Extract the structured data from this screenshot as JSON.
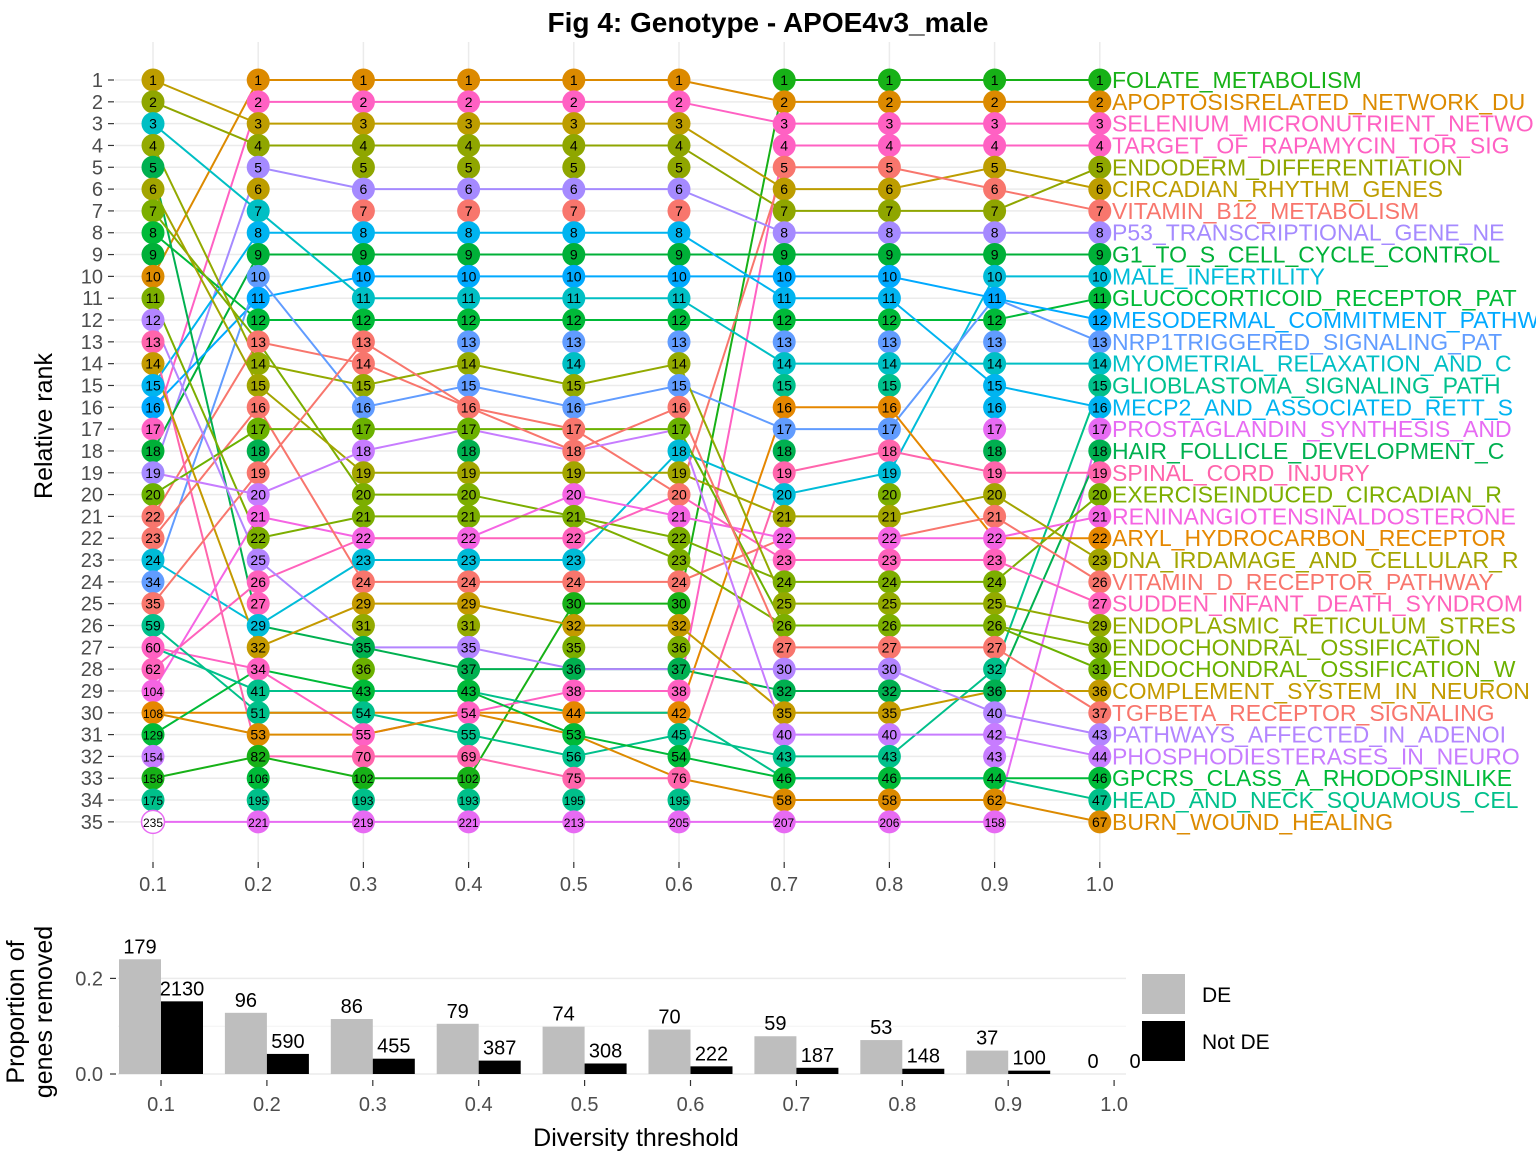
{
  "chart_data": [
    {
      "type": "line",
      "title": "Fig 4: Genotype - APOE4v3_male",
      "ylabel": "Relative rank",
      "ylim": [
        1,
        35
      ],
      "grid": true,
      "x": [
        "0.1",
        "0.2",
        "0.3",
        "0.4",
        "0.5",
        "0.6",
        "0.7",
        "0.8",
        "0.9",
        "1.0"
      ],
      "y_ticks": [
        "1",
        "2",
        "3",
        "4",
        "5",
        "6",
        "7",
        "8",
        "9",
        "10",
        "11",
        "12",
        "13",
        "14",
        "15",
        "16",
        "17",
        "18",
        "19",
        "20",
        "21",
        "22",
        "23",
        "24",
        "25",
        "26",
        "27",
        "28",
        "29",
        "30",
        "31",
        "32",
        "33",
        "34",
        "35"
      ],
      "point_labels": [
        [
          "1",
          "2",
          "3",
          "4",
          "5",
          "6",
          "7",
          "8",
          "9",
          "10",
          "11",
          "12",
          "13",
          "14",
          "15",
          "16",
          "17",
          "18",
          "19",
          "20",
          "22",
          "23",
          "24",
          "34",
          "35",
          "59",
          "60",
          "62",
          "104",
          "108",
          "129",
          "154",
          "158",
          "175",
          "235"
        ],
        [
          "1",
          "2",
          "3",
          "4",
          "5",
          "6",
          "7",
          "8",
          "9",
          "10",
          "11",
          "12",
          "13",
          "14",
          "15",
          "16",
          "17",
          "18",
          "19",
          "20",
          "21",
          "22",
          "25",
          "26",
          "27",
          "29",
          "32",
          "34",
          "41",
          "51",
          "53",
          "82",
          "106",
          "195",
          "221"
        ],
        [
          "1",
          "2",
          "3",
          "4",
          "5",
          "6",
          "7",
          "8",
          "9",
          "10",
          "11",
          "12",
          "13",
          "14",
          "15",
          "16",
          "17",
          "18",
          "19",
          "20",
          "21",
          "22",
          "23",
          "24",
          "29",
          "31",
          "35",
          "36",
          "43",
          "54",
          "55",
          "70",
          "102",
          "193",
          "219"
        ],
        [
          "1",
          "2",
          "3",
          "4",
          "5",
          "6",
          "7",
          "8",
          "9",
          "10",
          "11",
          "12",
          "13",
          "14",
          "15",
          "16",
          "17",
          "18",
          "19",
          "20",
          "21",
          "22",
          "23",
          "24",
          "29",
          "31",
          "35",
          "37",
          "43",
          "54",
          "55",
          "69",
          "102",
          "193",
          "221"
        ],
        [
          "1",
          "2",
          "3",
          "4",
          "5",
          "6",
          "7",
          "8",
          "9",
          "10",
          "11",
          "12",
          "13",
          "14",
          "15",
          "16",
          "17",
          "18",
          "19",
          "20",
          "21",
          "22",
          "23",
          "24",
          "30",
          "32",
          "35",
          "36",
          "38",
          "44",
          "53",
          "56",
          "75",
          "195",
          "213"
        ],
        [
          "1",
          "2",
          "3",
          "4",
          "5",
          "6",
          "7",
          "8",
          "9",
          "10",
          "11",
          "12",
          "13",
          "14",
          "15",
          "16",
          "17",
          "18",
          "19",
          "20",
          "21",
          "22",
          "23",
          "24",
          "30",
          "32",
          "36",
          "37",
          "38",
          "42",
          "45",
          "54",
          "76",
          "195",
          "205"
        ],
        [
          "1",
          "2",
          "3",
          "4",
          "5",
          "6",
          "7",
          "8",
          "9",
          "10",
          "11",
          "12",
          "13",
          "14",
          "15",
          "16",
          "17",
          "18",
          "19",
          "20",
          "21",
          "22",
          "23",
          "24",
          "25",
          "26",
          "27",
          "30",
          "32",
          "35",
          "40",
          "43",
          "46",
          "58",
          "207"
        ],
        [
          "1",
          "2",
          "3",
          "4",
          "5",
          "6",
          "7",
          "8",
          "9",
          "10",
          "11",
          "12",
          "13",
          "14",
          "15",
          "16",
          "17",
          "18",
          "19",
          "20",
          "21",
          "22",
          "23",
          "24",
          "25",
          "26",
          "27",
          "30",
          "32",
          "35",
          "40",
          "43",
          "46",
          "58",
          "206"
        ],
        [
          "1",
          "2",
          "3",
          "4",
          "5",
          "6",
          "7",
          "8",
          "9",
          "10",
          "11",
          "12",
          "13",
          "14",
          "15",
          "16",
          "17",
          "18",
          "19",
          "20",
          "21",
          "22",
          "23",
          "24",
          "25",
          "26",
          "27",
          "32",
          "36",
          "40",
          "42",
          "43",
          "44",
          "62",
          "158"
        ],
        [
          "1",
          "2",
          "3",
          "4",
          "5",
          "6",
          "7",
          "8",
          "9",
          "10",
          "11",
          "12",
          "13",
          "14",
          "15",
          "16",
          "17",
          "18",
          "19",
          "20",
          "21",
          "22",
          "23",
          "26",
          "27",
          "29",
          "30",
          "31",
          "36",
          "37",
          "43",
          "44",
          "46",
          "47",
          "67"
        ]
      ],
      "pathways": [
        {
          "name": "FOLATE_METABOLISM",
          "color": "#17B117",
          "ranks": [
            33,
            32,
            33,
            33,
            25,
            25,
            1,
            1,
            1,
            1
          ]
        },
        {
          "name": "APOPTOSISRELATED_NETWORK_DU",
          "color": "#DC8A00",
          "ranks": [
            10,
            1,
            1,
            1,
            1,
            1,
            2,
            2,
            2,
            2
          ]
        },
        {
          "name": "SELENIUM_MICRONUTRIENT_NETWO",
          "color": "#FF61C3",
          "ranks": [
            17,
            2,
            2,
            2,
            2,
            2,
            3,
            3,
            3,
            3
          ]
        },
        {
          "name": "TARGET_OF_RAPAMYCIN_TOR_SIG",
          "color": "#FF61C3",
          "ranks": [
            27,
            28,
            31,
            30,
            29,
            29,
            4,
            4,
            4,
            4
          ]
        },
        {
          "name": "ENDODERM_DIFFERENTIATION",
          "color": "#8FA600",
          "ranks": [
            2,
            4,
            4,
            4,
            4,
            4,
            7,
            7,
            7,
            5
          ]
        },
        {
          "name": "CIRCADIAN_RHYTHM_GENES",
          "color": "#BD9D00",
          "ranks": [
            1,
            3,
            3,
            3,
            3,
            3,
            6,
            6,
            5,
            6
          ]
        },
        {
          "name": "VITAMIN_B12_METABOLISM",
          "color": "#F8766D",
          "ranks": [
            21,
            13,
            14,
            16,
            17,
            20,
            5,
            5,
            6,
            7
          ]
        },
        {
          "name": "P53_TRANSCRIPTIONAL_GENE_NE",
          "color": "#A58AFF",
          "ranks": [
            19,
            5,
            6,
            6,
            6,
            6,
            8,
            8,
            8,
            8
          ]
        },
        {
          "name": "G1_TO_S_CELL_CYCLE_CONTROL",
          "color": "#00B038",
          "ranks": [
            18,
            9,
            9,
            9,
            9,
            9,
            9,
            9,
            9,
            9
          ]
        },
        {
          "name": "MALE_INFERTILITY",
          "color": "#00BCD8",
          "ranks": [
            23,
            26,
            23,
            23,
            23,
            18,
            20,
            19,
            10,
            10
          ]
        },
        {
          "name": "GLUCOCORTICOID_RECEPTOR_PAT",
          "color": "#00BA38",
          "ranks": [
            8,
            12,
            12,
            12,
            12,
            12,
            12,
            12,
            12,
            11
          ]
        },
        {
          "name": "MESODERMAL_COMMITMENT_PATHW",
          "color": "#00A9FF",
          "ranks": [
            16,
            11,
            10,
            10,
            10,
            10,
            10,
            10,
            11,
            12
          ]
        },
        {
          "name": "NRP1TRIGGERED_SIGNALING_PAT",
          "color": "#619CFF",
          "ranks": [
            24,
            10,
            16,
            15,
            16,
            15,
            17,
            17,
            11,
            13
          ]
        },
        {
          "name": "MYOMETRIAL_RELAXATION_AND_C",
          "color": "#00BFC4",
          "ranks": [
            3,
            7,
            11,
            11,
            11,
            11,
            14,
            14,
            14,
            14
          ]
        },
        {
          "name": "GLIOBLASTOMA_SIGNALING_PATH",
          "color": "#00C08B",
          "ranks": [
            26,
            30,
            30,
            31,
            32,
            31,
            32,
            32,
            28,
            15
          ]
        },
        {
          "name": "MECP2_AND_ASSOCIATED_RETT_S",
          "color": "#00B4F0",
          "ranks": [
            15,
            8,
            8,
            8,
            8,
            8,
            11,
            11,
            15,
            16
          ]
        },
        {
          "name": "PROSTAGLANDIN_SYNTHESIS_AND",
          "color": "#E76BF3",
          "ranks": [
            35,
            35,
            35,
            35,
            35,
            35,
            35,
            35,
            35,
            17
          ]
        },
        {
          "name": "HAIR_FOLLICLE_DEVELOPMENT_C",
          "color": "#00B050",
          "ranks": [
            5,
            26,
            27,
            28,
            28,
            28,
            29,
            29,
            29,
            18
          ]
        },
        {
          "name": "SPINAL_CORD_INJURY",
          "color": "#FF65AC",
          "ranks": [
            13,
            32,
            32,
            32,
            33,
            33,
            19,
            18,
            19,
            19
          ]
        },
        {
          "name": "EXERCISEINDUCED_CIRCADIAN_R",
          "color": "#7CAE00",
          "ranks": [
            7,
            13,
            20,
            20,
            21,
            22,
            24,
            24,
            24,
            20
          ]
        },
        {
          "name": "RENINANGIOTENSINALDOSTERONE",
          "color": "#F564E3",
          "ranks": [
            29,
            21,
            22,
            22,
            20,
            21,
            22,
            22,
            22,
            21
          ]
        },
        {
          "name": "ARYL_HYDROCARBON_RECEPTOR",
          "color": "#E58700",
          "ranks": [
            30,
            30,
            30,
            30,
            30,
            30,
            16,
            16,
            22,
            22
          ]
        },
        {
          "name": "DNA_IRDAMAGE_AND_CELLULAR_R",
          "color": "#A3A500",
          "ranks": [
            6,
            15,
            19,
            19,
            19,
            19,
            21,
            21,
            20,
            23
          ]
        },
        {
          "name": "VITAMIN_D_RECEPTOR_PATHWAY",
          "color": "#F8766D",
          "ranks": [
            22,
            16,
            24,
            24,
            24,
            24,
            22,
            22,
            21,
            24
          ]
        },
        {
          "name": "SUDDEN_INFANT_DEATH_SYNDROM",
          "color": "#FF62BC",
          "ranks": [
            28,
            24,
            22,
            22,
            22,
            20,
            23,
            23,
            23,
            25
          ]
        },
        {
          "name": "ENDOPLASMIC_RETICULUM_STRES",
          "color": "#93AA00",
          "ranks": [
            4,
            14,
            15,
            14,
            15,
            14,
            25,
            25,
            25,
            26
          ]
        },
        {
          "name": "ENDOCHONDRAL_OSSIFICATION",
          "color": "#7CAE00",
          "ranks": [
            11,
            22,
            21,
            21,
            21,
            23,
            26,
            26,
            26,
            27
          ]
        },
        {
          "name": "ENDOCHONDRAL_OSSIFICATION_W",
          "color": "#6BB100",
          "ranks": [
            20,
            17,
            17,
            17,
            17,
            17,
            26,
            26,
            26,
            28
          ]
        },
        {
          "name": "COMPLEMENT_SYSTEM_IN_NEURON",
          "color": "#C49A00",
          "ranks": [
            14,
            27,
            25,
            25,
            26,
            26,
            30,
            30,
            29,
            29
          ]
        },
        {
          "name": "TGFBETA_RECEPTOR_SIGNALING",
          "color": "#F8766D",
          "ranks": [
            25,
            19,
            13,
            16,
            18,
            16,
            27,
            27,
            27,
            30
          ]
        },
        {
          "name": "PATHWAYS_AFFECTED_IN_ADENOI",
          "color": "#B385FF",
          "ranks": [
            12,
            23,
            27,
            27,
            28,
            28,
            28,
            28,
            30,
            31
          ]
        },
        {
          "name": "PHOSPHODIESTERASES_IN_NEURO",
          "color": "#C77CFF",
          "ranks": [
            19,
            20,
            18,
            17,
            18,
            17,
            31,
            31,
            31,
            32
          ]
        },
        {
          "name": "GPCRS_CLASS_A_RHODOPSINLIKE",
          "color": "#00BA38",
          "ranks": [
            31,
            28,
            29,
            29,
            31,
            32,
            33,
            33,
            33,
            33
          ]
        },
        {
          "name": "HEAD_AND_NECK_SQUAMOUS_CEL",
          "color": "#00C08B",
          "ranks": [
            27,
            29,
            29,
            29,
            30,
            30,
            33,
            33,
            33,
            34
          ]
        },
        {
          "name": "BURN_WOUND_HEALING",
          "color": "#DC8A00",
          "ranks": [
            30,
            31,
            31,
            30,
            31,
            33,
            34,
            34,
            34,
            35
          ]
        }
      ]
    },
    {
      "type": "bar",
      "xlabel": "Diversity threshold",
      "ylabel": "Proportion of genes removed",
      "ylim": [
        0,
        0.25
      ],
      "y_ticks": [
        "0.0",
        "0.2"
      ],
      "categories": [
        "0.1",
        "0.2",
        "0.3",
        "0.4",
        "0.5",
        "0.6",
        "0.7",
        "0.8",
        "0.9",
        "1.0"
      ],
      "legend_position": "right",
      "series": [
        {
          "name": "DE",
          "color": "#BEBEBE",
          "values": [
            0.24,
            0.128,
            0.115,
            0.105,
            0.099,
            0.093,
            0.079,
            0.071,
            0.049,
            0.0
          ],
          "labels": [
            "179",
            "96",
            "86",
            "79",
            "74",
            "70",
            "59",
            "53",
            "37",
            "0"
          ]
        },
        {
          "name": "Not DE",
          "color": "#000000",
          "values": [
            0.152,
            0.042,
            0.032,
            0.028,
            0.022,
            0.016,
            0.013,
            0.011,
            0.007,
            0.0
          ],
          "labels": [
            "2130",
            "590",
            "455",
            "387",
            "308",
            "222",
            "187",
            "148",
            "100",
            "0"
          ]
        }
      ]
    }
  ]
}
